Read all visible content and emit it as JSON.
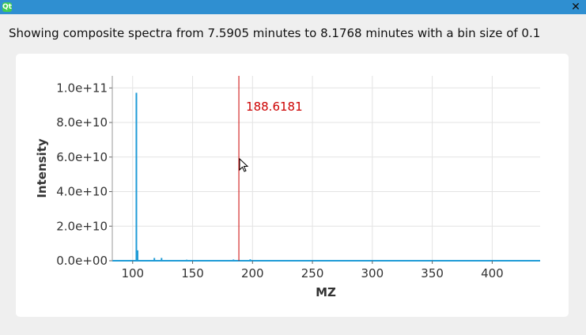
{
  "window": {
    "app_icon": "qt-icon",
    "close_symbol": "✕"
  },
  "info": {
    "text": "Showing composite spectra from 7.5905 minutes to 8.1768 minutes with a bin size of 0.1"
  },
  "chart_data": {
    "type": "bar",
    "xlabel": "MZ",
    "ylabel": "Intensity",
    "xlim": [
      83,
      440
    ],
    "ylim": [
      0,
      107000000000.0
    ],
    "x_ticks": [
      100,
      150,
      200,
      250,
      300,
      350,
      400
    ],
    "x_tick_labels": [
      "100",
      "150",
      "200",
      "250",
      "300",
      "350",
      "400"
    ],
    "y_ticks": [
      0,
      20000000000.0,
      40000000000.0,
      60000000000.0,
      80000000000.0,
      100000000000.0
    ],
    "y_tick_labels": [
      "0.0e+00",
      "2.0e+10",
      "4.0e+10",
      "6.0e+10",
      "8.0e+10",
      "1.0e+11"
    ],
    "grid": true,
    "series_color": "#1f9bd6",
    "points": [
      {
        "x": 103.1,
        "y": 97200000000.0
      },
      {
        "x": 104.1,
        "y": 6000000000.0
      },
      {
        "x": 118.1,
        "y": 1600000000.0
      },
      {
        "x": 124.1,
        "y": 1600000000.0
      },
      {
        "x": 145.1,
        "y": 600000000.0
      },
      {
        "x": 184.1,
        "y": 700000000.0
      },
      {
        "x": 198.1,
        "y": 800000000.0
      }
    ],
    "cursor": {
      "x": 188.6181,
      "label": "188.6181",
      "color": "#cc0000"
    }
  }
}
